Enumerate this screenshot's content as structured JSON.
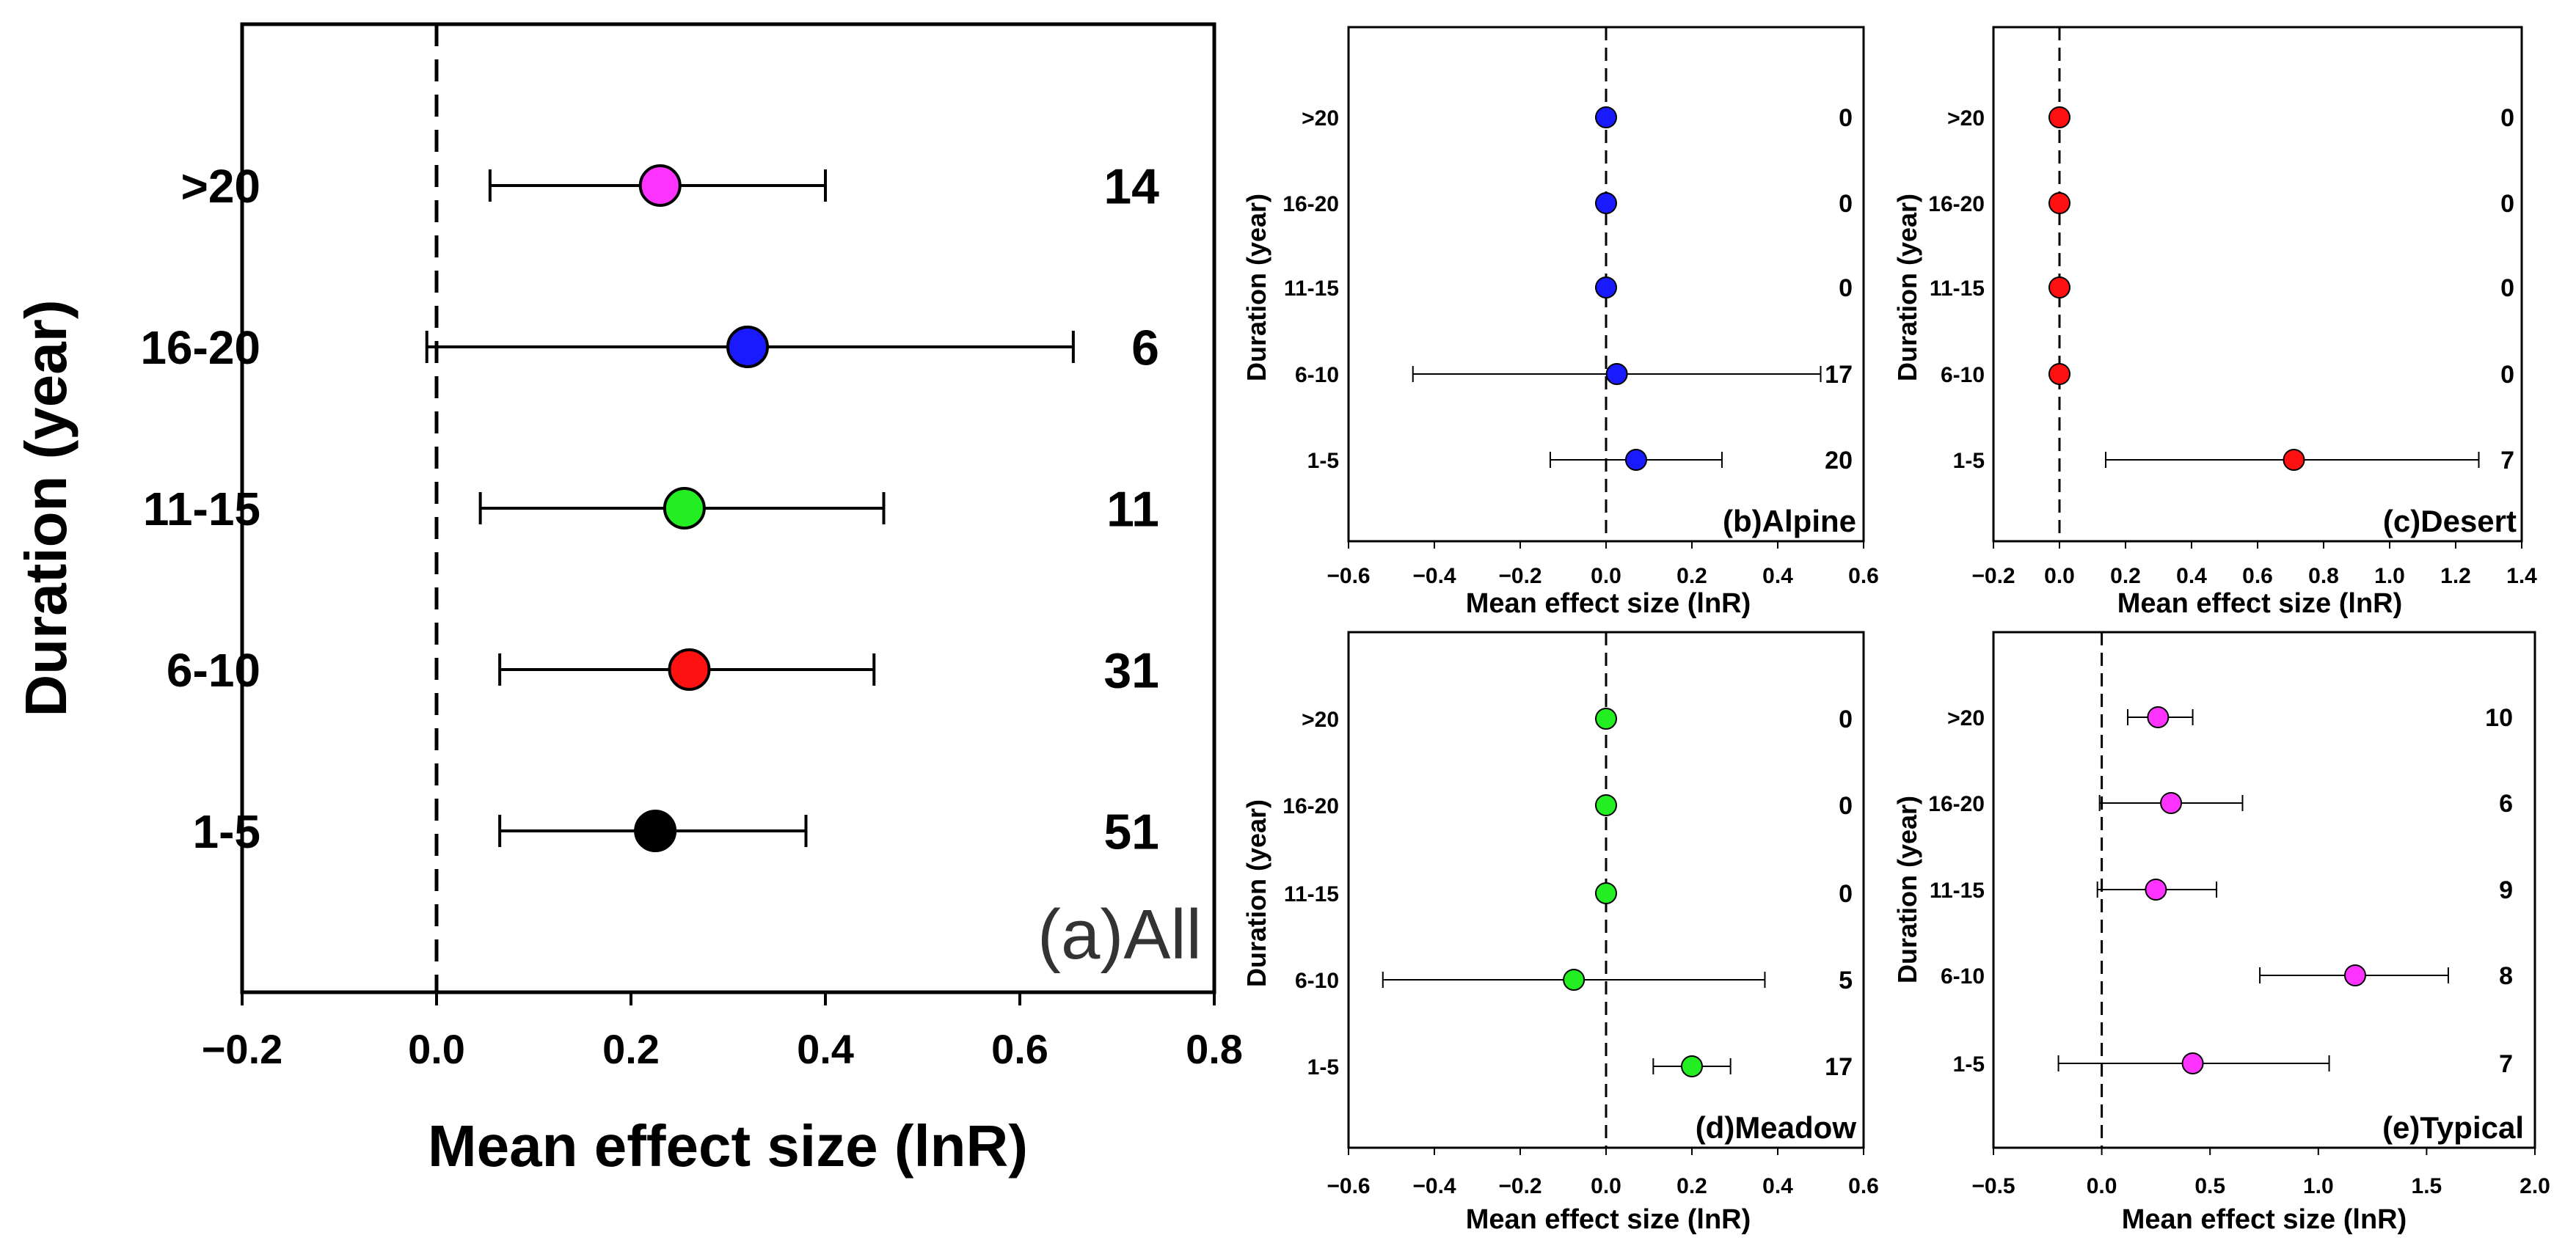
{
  "chart_data": [
    {
      "type": "forest",
      "panel_label": "(a)All",
      "xlabel": "Mean effect size (lnR)",
      "ylabel": "Duration (year)",
      "xlim": [
        -0.2,
        0.8
      ],
      "xticks": [
        -0.2,
        0.0,
        0.2,
        0.4,
        0.6,
        0.8
      ],
      "xtick_labels": [
        "−0.2",
        "0.0",
        "0.2",
        "0.4",
        "0.6",
        "0.8"
      ],
      "categories": [
        ">20",
        "16-20",
        "11-15",
        "6-10",
        "1-5"
      ],
      "means": [
        0.23,
        0.32,
        0.255,
        0.26,
        0.225
      ],
      "ci_low": [
        0.055,
        -0.01,
        0.045,
        0.065,
        0.065
      ],
      "ci_high": [
        0.4,
        0.655,
        0.46,
        0.45,
        0.38
      ],
      "n": [
        "14",
        "6",
        "11",
        "31",
        "51"
      ],
      "colors": [
        "#ff33ff",
        "#1a1aff",
        "#22ee22",
        "#ff1111",
        "#000000"
      ]
    },
    {
      "type": "forest",
      "panel_label": "(b)Alpine",
      "xlabel": "Mean effect size (lnR)",
      "ylabel": "Duration (year)",
      "xlim": [
        -0.6,
        0.6
      ],
      "xticks": [
        -0.6,
        -0.4,
        -0.2,
        0.0,
        0.2,
        0.4,
        0.6
      ],
      "xtick_labels": [
        "−0.6",
        "−0.4",
        "−0.2",
        "0.0",
        "0.2",
        "0.4",
        "0.6"
      ],
      "categories": [
        ">20",
        "16-20",
        "11-15",
        "6-10",
        "1-5"
      ],
      "means": [
        0.0,
        0.0,
        0.0,
        0.025,
        0.07
      ],
      "ci_low": [
        null,
        null,
        null,
        -0.45,
        -0.13
      ],
      "ci_high": [
        null,
        null,
        null,
        0.5,
        0.27
      ],
      "n": [
        "0",
        "0",
        "0",
        "17",
        "20"
      ],
      "colors": [
        "#1a1aff",
        "#1a1aff",
        "#1a1aff",
        "#1a1aff",
        "#1a1aff"
      ]
    },
    {
      "type": "forest",
      "panel_label": "(c)Desert",
      "xlabel": "Mean effect size (lnR)",
      "ylabel": "Duration (year)",
      "xlim": [
        -0.2,
        1.4
      ],
      "xticks": [
        -0.2,
        0.0,
        0.2,
        0.4,
        0.6,
        0.8,
        1.0,
        1.2,
        1.4
      ],
      "xtick_labels": [
        "−0.2",
        "0.0",
        "0.2",
        "0.4",
        "0.6",
        "0.8",
        "1.0",
        "1.2",
        "1.4"
      ],
      "categories": [
        ">20",
        "16-20",
        "11-15",
        "6-10",
        "1-5"
      ],
      "means": [
        0.0,
        0.0,
        0.0,
        0.0,
        0.71
      ],
      "ci_low": [
        null,
        null,
        null,
        null,
        0.14
      ],
      "ci_high": [
        null,
        null,
        null,
        null,
        1.27
      ],
      "n": [
        "0",
        "0",
        "0",
        "0",
        "7"
      ],
      "colors": [
        "#ff1111",
        "#ff1111",
        "#ff1111",
        "#ff1111",
        "#ff1111"
      ]
    },
    {
      "type": "forest",
      "panel_label": "(d)Meadow",
      "xlabel": "Mean effect size (lnR)",
      "ylabel": "Duration (year)",
      "xlim": [
        -0.6,
        0.6
      ],
      "xticks": [
        -0.6,
        -0.4,
        -0.2,
        0.0,
        0.2,
        0.4,
        0.6
      ],
      "xtick_labels": [
        "−0.6",
        "−0.4",
        "−0.2",
        "0.0",
        "0.2",
        "0.4",
        "0.6"
      ],
      "categories": [
        ">20",
        "16-20",
        "11-15",
        "6-10",
        "1-5"
      ],
      "means": [
        0.0,
        0.0,
        0.0,
        -0.075,
        0.2
      ],
      "ci_low": [
        null,
        null,
        null,
        -0.52,
        0.11
      ],
      "ci_high": [
        null,
        null,
        null,
        0.37,
        0.29
      ],
      "n": [
        "0",
        "0",
        "0",
        "5",
        "17"
      ],
      "colors": [
        "#22ee22",
        "#22ee22",
        "#22ee22",
        "#22ee22",
        "#22ee22"
      ]
    },
    {
      "type": "forest",
      "panel_label": "(e)Typical",
      "xlabel": "Mean effect size (lnR)",
      "ylabel": "Duration (year)",
      "xlim": [
        -0.5,
        2.0
      ],
      "xticks": [
        -0.5,
        0.0,
        0.5,
        1.0,
        1.5,
        2.0
      ],
      "xtick_labels": [
        "−0.5",
        "0.0",
        "0.5",
        "1.0",
        "1.5",
        "2.0"
      ],
      "categories": [
        ">20",
        "16-20",
        "11-15",
        "6-10",
        "1-5"
      ],
      "means": [
        0.26,
        0.32,
        0.25,
        1.17,
        0.42
      ],
      "ci_low": [
        0.12,
        -0.01,
        -0.02,
        0.73,
        -0.2
      ],
      "ci_high": [
        0.42,
        0.65,
        0.53,
        1.6,
        1.05
      ],
      "n": [
        "10",
        "6",
        "9",
        "8",
        "7"
      ],
      "colors": [
        "#ff33ff",
        "#ff33ff",
        "#ff33ff",
        "#ff33ff",
        "#ff33ff"
      ]
    }
  ]
}
